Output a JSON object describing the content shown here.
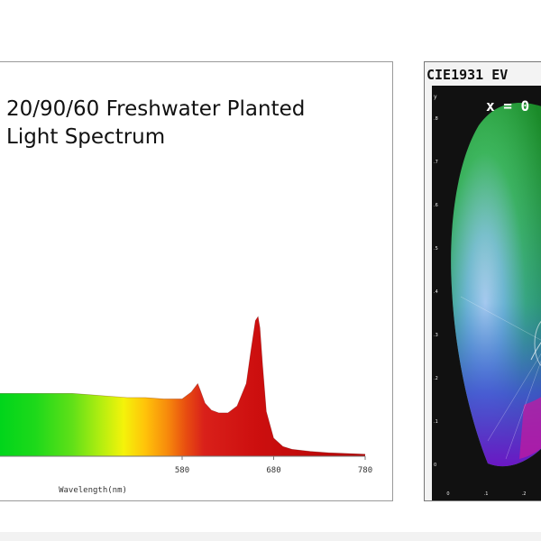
{
  "chart_data": [
    {
      "type": "area",
      "title": "20/90/60 Freshwater Planted\nLight Spectrum",
      "title_lines": [
        "20/90/60 Freshwater Planted",
        "Light Spectrum"
      ],
      "xlabel": "Wavelength(nm)",
      "ylabel": "",
      "xlim": [
        380,
        780
      ],
      "ylim": [
        0,
        1
      ],
      "x_ticks": [
        580,
        680,
        780
      ],
      "grid": false,
      "series": [
        {
          "x": [
            380,
            400,
            420,
            440,
            460,
            480,
            500,
            520,
            540,
            560,
            580,
            590,
            597,
            600,
            605,
            612,
            620,
            630,
            640,
            650,
            655,
            660,
            663,
            665,
            668,
            672,
            680,
            690,
            700,
            720,
            740,
            760,
            780
          ],
          "values": [
            0.45,
            0.45,
            0.45,
            0.45,
            0.45,
            0.44,
            0.43,
            0.42,
            0.42,
            0.41,
            0.41,
            0.46,
            0.52,
            0.47,
            0.38,
            0.33,
            0.31,
            0.31,
            0.36,
            0.52,
            0.75,
            0.97,
            1.0,
            0.92,
            0.65,
            0.32,
            0.13,
            0.07,
            0.05,
            0.035,
            0.025,
            0.02,
            0.015
          ]
        }
      ]
    },
    {
      "type": "scatter",
      "title": "CIE1931 EV",
      "readout": "x = 0",
      "ylabel": "y",
      "y_ticks": [
        ".8",
        ".7",
        ".6",
        ".5",
        ".4",
        ".3",
        ".2",
        ".1",
        "0"
      ],
      "x_ticks": [
        "0",
        ".1",
        ".2"
      ]
    }
  ]
}
